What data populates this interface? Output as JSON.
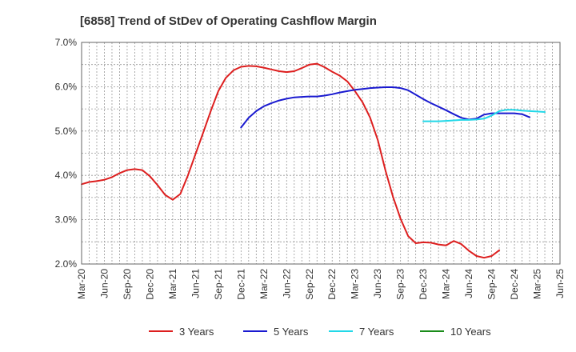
{
  "chart_data": {
    "type": "line",
    "title": "[6858]  Trend of StDev of Operating Cashflow Margin",
    "xlabel": "",
    "ylabel": "",
    "x_ticks": [
      "Mar-20",
      "Jun-20",
      "Sep-20",
      "Dec-20",
      "Mar-21",
      "Jun-21",
      "Sep-21",
      "Dec-21",
      "Mar-22",
      "Jun-22",
      "Sep-22",
      "Dec-22",
      "Mar-23",
      "Jun-23",
      "Sep-23",
      "Dec-23",
      "Mar-24",
      "Jun-24",
      "Sep-24",
      "Dec-24",
      "Mar-25",
      "Jun-25"
    ],
    "y_ticks": [
      "2.0%",
      "3.0%",
      "4.0%",
      "5.0%",
      "6.0%",
      "7.0%"
    ],
    "ylim": [
      2.0,
      7.0
    ],
    "grid": true,
    "legend_position": "bottom",
    "series": [
      {
        "name": "3 Years",
        "color": "#dd1f1f",
        "x_start": "Mar-20",
        "values": [
          3.8,
          3.85,
          3.87,
          3.9,
          3.96,
          4.05,
          4.12,
          4.14,
          4.12,
          3.98,
          3.78,
          3.56,
          3.45,
          3.58,
          4.0,
          4.48,
          4.96,
          5.45,
          5.9,
          6.2,
          6.37,
          6.45,
          6.47,
          6.46,
          6.43,
          6.39,
          6.35,
          6.33,
          6.35,
          6.42,
          6.5,
          6.52,
          6.44,
          6.34,
          6.25,
          6.12,
          5.9,
          5.65,
          5.3,
          4.8,
          4.12,
          3.52,
          3.02,
          2.63,
          2.47,
          2.49,
          2.48,
          2.44,
          2.42,
          2.52,
          2.45,
          2.3,
          2.18,
          2.14,
          2.18,
          2.31
        ]
      },
      {
        "name": "5 Years",
        "color": "#1a1ad0",
        "x_start": "Dec-21",
        "values": [
          5.08,
          5.3,
          5.45,
          5.56,
          5.63,
          5.69,
          5.73,
          5.76,
          5.77,
          5.78,
          5.78,
          5.8,
          5.83,
          5.87,
          5.9,
          5.93,
          5.95,
          5.97,
          5.98,
          5.99,
          5.99,
          5.97,
          5.92,
          5.82,
          5.72,
          5.63,
          5.55,
          5.47,
          5.38,
          5.3,
          5.26,
          5.28,
          5.37,
          5.4,
          5.4,
          5.4,
          5.4,
          5.38,
          5.31
        ]
      },
      {
        "name": "7 Years",
        "color": "#22d8e8",
        "x_start": "Dec-23",
        "values": [
          5.22,
          5.22,
          5.22,
          5.23,
          5.24,
          5.25,
          5.25,
          5.26,
          5.28,
          5.35,
          5.45,
          5.48,
          5.48,
          5.46,
          5.45,
          5.44,
          5.43
        ]
      },
      {
        "name": "10 Years",
        "color": "#1a8c1a",
        "x_start": "",
        "values": []
      }
    ]
  }
}
